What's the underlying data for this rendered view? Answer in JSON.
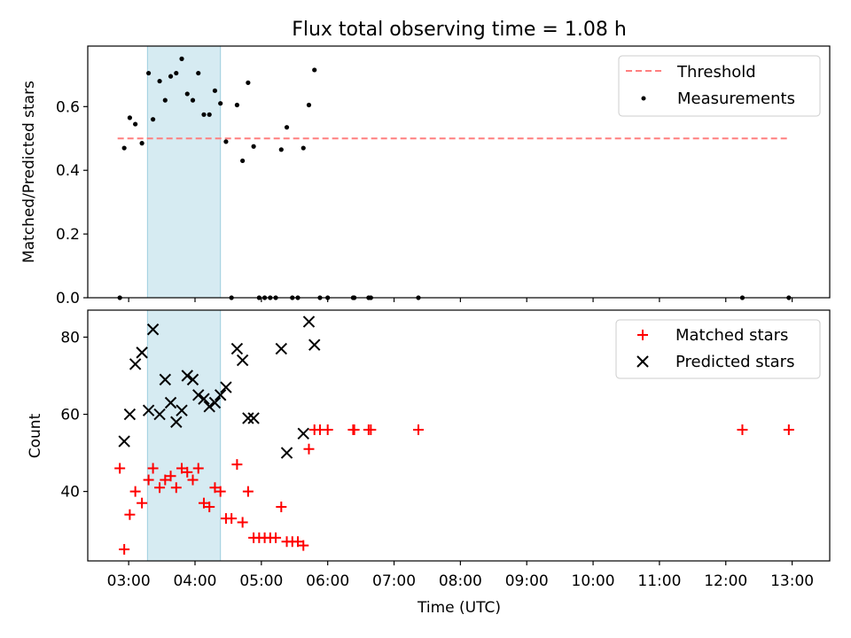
{
  "chart_data": [
    {
      "type": "scatter",
      "title": "Flux total observing time = 1.08 h",
      "ylabel": "Matched/Predicted stars",
      "xlim": [
        "02:23",
        "13:34"
      ],
      "ylim": [
        0,
        0.79
      ],
      "yticks": [
        "0.0",
        "0.2",
        "0.4",
        "0.6"
      ],
      "highlight_span": {
        "start": "03:17",
        "end": "04:23",
        "color": "#add8e6"
      },
      "threshold": {
        "name": "Threshold",
        "value": 0.5,
        "x_start": "02:50",
        "x_end": "12:57",
        "color": "#ff7f7f"
      },
      "series": [
        {
          "name": "Measurements",
          "color": "#000000",
          "points": [
            [
              "02:52",
              0.0
            ],
            [
              "02:56",
              0.47
            ],
            [
              "03:01",
              0.565
            ],
            [
              "03:06",
              0.545
            ],
            [
              "03:12",
              0.485
            ],
            [
              "03:18",
              0.705
            ],
            [
              "03:22",
              0.56
            ],
            [
              "03:28",
              0.68
            ],
            [
              "03:33",
              0.62
            ],
            [
              "03:38",
              0.695
            ],
            [
              "03:43",
              0.705
            ],
            [
              "03:48",
              0.75
            ],
            [
              "03:53",
              0.64
            ],
            [
              "03:58",
              0.62
            ],
            [
              "04:03",
              0.705
            ],
            [
              "04:08",
              0.575
            ],
            [
              "04:13",
              0.575
            ],
            [
              "04:18",
              0.65
            ],
            [
              "04:23",
              0.61
            ],
            [
              "04:28",
              0.49
            ],
            [
              "04:33",
              0.0
            ],
            [
              "04:38",
              0.605
            ],
            [
              "04:43",
              0.43
            ],
            [
              "04:48",
              0.675
            ],
            [
              "04:53",
              0.475
            ],
            [
              "04:58",
              0.0
            ],
            [
              "05:03",
              0.0
            ],
            [
              "05:08",
              0.0
            ],
            [
              "05:13",
              0.0
            ],
            [
              "05:18",
              0.465
            ],
            [
              "05:23",
              0.535
            ],
            [
              "05:28",
              0.0
            ],
            [
              "05:33",
              0.0
            ],
            [
              "05:38",
              0.47
            ],
            [
              "05:43",
              0.605
            ],
            [
              "05:48",
              0.715
            ],
            [
              "05:53",
              0.0
            ],
            [
              "06:00",
              0.0
            ],
            [
              "06:23",
              0.0
            ],
            [
              "06:24",
              0.0
            ],
            [
              "06:37",
              0.0
            ],
            [
              "06:39",
              0.0
            ],
            [
              "07:22",
              0.0
            ],
            [
              "12:15",
              0.0
            ],
            [
              "12:57",
              0.0
            ]
          ]
        }
      ],
      "legend": {
        "placement": "top-right",
        "entries": [
          "Threshold",
          "Measurements"
        ]
      }
    },
    {
      "type": "scatter",
      "xlabel": "Time (UTC)",
      "ylabel": "Count",
      "xlim": [
        "02:23",
        "13:34"
      ],
      "ylim": [
        22,
        87
      ],
      "yticks": [
        "40",
        "60",
        "80"
      ],
      "xticks": [
        "03:00",
        "04:00",
        "05:00",
        "06:00",
        "07:00",
        "08:00",
        "09:00",
        "10:00",
        "11:00",
        "12:00",
        "13:00"
      ],
      "highlight_span": {
        "start": "03:17",
        "end": "04:23",
        "color": "#add8e6"
      },
      "series": [
        {
          "name": "Matched stars",
          "marker": "+",
          "color": "#ff0000",
          "points": [
            [
              "02:52",
              46
            ],
            [
              "02:56",
              25
            ],
            [
              "03:01",
              34
            ],
            [
              "03:06",
              40
            ],
            [
              "03:12",
              37
            ],
            [
              "03:18",
              43
            ],
            [
              "03:22",
              46
            ],
            [
              "03:28",
              41
            ],
            [
              "03:33",
              43
            ],
            [
              "03:38",
              44
            ],
            [
              "03:43",
              41
            ],
            [
              "03:48",
              46
            ],
            [
              "03:53",
              45
            ],
            [
              "03:58",
              43
            ],
            [
              "04:03",
              46
            ],
            [
              "04:08",
              37
            ],
            [
              "04:13",
              36
            ],
            [
              "04:18",
              41
            ],
            [
              "04:23",
              40
            ],
            [
              "04:28",
              33
            ],
            [
              "04:33",
              33
            ],
            [
              "04:38",
              47
            ],
            [
              "04:43",
              32
            ],
            [
              "04:48",
              40
            ],
            [
              "04:53",
              28
            ],
            [
              "04:58",
              28
            ],
            [
              "05:03",
              28
            ],
            [
              "05:08",
              28
            ],
            [
              "05:13",
              28
            ],
            [
              "05:18",
              36
            ],
            [
              "05:23",
              27
            ],
            [
              "05:28",
              27
            ],
            [
              "05:33",
              27
            ],
            [
              "05:38",
              26
            ],
            [
              "05:43",
              51
            ],
            [
              "05:48",
              56
            ],
            [
              "05:53",
              56
            ],
            [
              "06:00",
              56
            ],
            [
              "06:23",
              56
            ],
            [
              "06:24",
              56
            ],
            [
              "06:37",
              56
            ],
            [
              "06:39",
              56
            ],
            [
              "07:22",
              56
            ],
            [
              "12:15",
              56
            ],
            [
              "12:57",
              56
            ]
          ]
        },
        {
          "name": "Predicted stars",
          "marker": "x",
          "color": "#000000",
          "points": [
            [
              "02:56",
              53
            ],
            [
              "03:01",
              60
            ],
            [
              "03:06",
              73
            ],
            [
              "03:12",
              76
            ],
            [
              "03:18",
              61
            ],
            [
              "03:22",
              82
            ],
            [
              "03:28",
              60
            ],
            [
              "03:33",
              69
            ],
            [
              "03:38",
              63
            ],
            [
              "03:43",
              58
            ],
            [
              "03:48",
              61
            ],
            [
              "03:53",
              70
            ],
            [
              "03:58",
              69
            ],
            [
              "04:03",
              65
            ],
            [
              "04:08",
              64
            ],
            [
              "04:13",
              62
            ],
            [
              "04:18",
              63
            ],
            [
              "04:23",
              65
            ],
            [
              "04:28",
              67
            ],
            [
              "04:38",
              77
            ],
            [
              "04:43",
              74
            ],
            [
              "04:48",
              59
            ],
            [
              "04:53",
              59
            ],
            [
              "05:18",
              77
            ],
            [
              "05:23",
              50
            ],
            [
              "05:38",
              55
            ],
            [
              "05:43",
              84
            ],
            [
              "05:48",
              78
            ]
          ]
        }
      ],
      "legend": {
        "placement": "top-right",
        "entries": [
          "Matched stars",
          "Predicted stars"
        ]
      }
    }
  ]
}
